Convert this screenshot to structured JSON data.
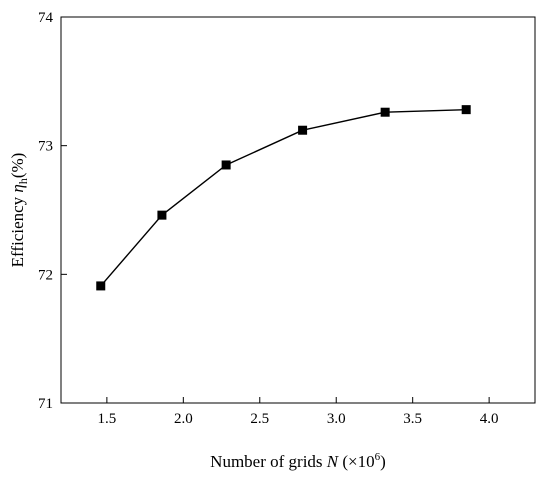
{
  "chart_data": {
    "type": "line",
    "x": [
      1.46,
      1.86,
      2.28,
      2.78,
      3.32,
      3.85
    ],
    "series": [
      {
        "values": [
          71.91,
          72.46,
          72.85,
          73.12,
          73.26,
          73.28
        ]
      }
    ],
    "xlim": [
      1.2,
      4.3
    ],
    "ylim": [
      71,
      74
    ],
    "xticks": [
      1.5,
      2.0,
      2.5,
      3.0,
      3.5,
      4.0
    ],
    "xtick_labels": [
      "1.5",
      "2.0",
      "2.5",
      "3.0",
      "3.5",
      "4.0"
    ],
    "yticks": [
      71,
      72,
      73,
      74
    ],
    "ytick_labels": [
      "71",
      "72",
      "73",
      "74"
    ],
    "xlabel": {
      "prefix": "Number of grids ",
      "var": "N",
      "unit_open": " (×10",
      "unit_exp": "6",
      "unit_close": ")"
    },
    "ylabel": {
      "prefix": "Efficiency ",
      "var": "η",
      "sub": "h",
      "unit": "(%)"
    },
    "grid": false,
    "legend": "none",
    "marker": "square",
    "line_color": "#000000"
  }
}
